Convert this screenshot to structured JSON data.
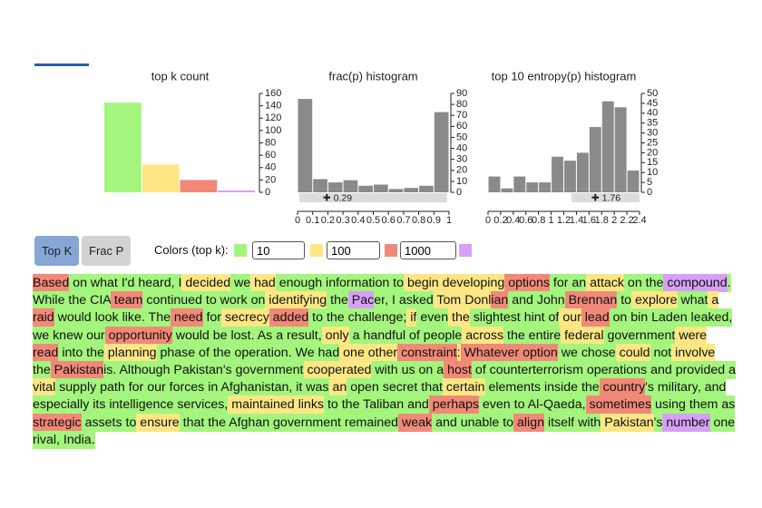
{
  "charts": [
    {
      "type": "bar",
      "title": "top k count",
      "values": [
        145,
        45,
        20,
        3
      ],
      "colors": [
        "#a3f57d",
        "#fde784",
        "#f28978",
        "#d7a0f7"
      ],
      "ylim": [
        0,
        160
      ],
      "yticks": [
        0,
        20,
        40,
        60,
        80,
        100,
        120,
        140,
        160
      ]
    },
    {
      "type": "histogram",
      "title": "frac(p) histogram",
      "bins": [
        0,
        0.1,
        0.2,
        0.3,
        0.4,
        0.5,
        0.6,
        0.7,
        0.8,
        0.9,
        1
      ],
      "values": [
        85,
        12,
        9,
        11,
        6,
        7,
        3,
        4,
        6,
        73
      ],
      "color": "#8a8a8a",
      "xlim": [
        0,
        1
      ],
      "xticks": [
        0,
        0.1,
        0.2,
        0.3,
        0.4,
        0.5,
        0.6,
        0.7,
        0.8,
        0.9,
        1
      ],
      "ylim": [
        0,
        90
      ],
      "yticks": [
        0,
        10,
        20,
        30,
        40,
        50,
        60,
        70,
        80,
        90
      ],
      "annotation": "✚ 0.29"
    },
    {
      "type": "histogram",
      "title": "top 10 entropy(p) histogram",
      "bins": [
        0,
        0.2,
        0.4,
        0.6,
        0.8,
        1,
        1.2,
        1.4,
        1.6,
        1.8,
        2,
        2.2,
        2.4
      ],
      "values": [
        8,
        2,
        8,
        5,
        5,
        18,
        16,
        20,
        33,
        46,
        43,
        11
      ],
      "color": "#8a8a8a",
      "xlim": [
        0,
        2.4
      ],
      "xticks": [
        0,
        0.2,
        0.4,
        0.6,
        0.8,
        1,
        1.2,
        1.4,
        1.6,
        1.8,
        2,
        2.2,
        2.4
      ],
      "ylim": [
        0,
        50
      ],
      "yticks": [
        0,
        5,
        10,
        15,
        20,
        25,
        30,
        35,
        40,
        45,
        50
      ],
      "annotation": "✚ 1.76"
    }
  ],
  "buttons": [
    "Top K",
    "Frac P"
  ],
  "colors_label": "Colors (top k):",
  "thresholds": [
    10,
    100,
    1000
  ],
  "palette": {
    "g": "#a3f57d",
    "y": "#fde784",
    "r": "#f28978",
    "p": "#d7a0f7"
  },
  "tokens": [
    [
      "Based",
      "r"
    ],
    [
      " on",
      "g"
    ],
    [
      " what",
      "g"
    ],
    [
      " I",
      "g"
    ],
    [
      "'d",
      "g"
    ],
    [
      " heard",
      "g"
    ],
    [
      ",",
      "g"
    ],
    [
      " I",
      "g"
    ],
    [
      " decided",
      "y"
    ],
    [
      " we",
      "g"
    ],
    [
      " had",
      "y"
    ],
    [
      " enough",
      "g"
    ],
    [
      " information",
      "g"
    ],
    [
      " to",
      "g"
    ],
    [
      " begin",
      "y"
    ],
    [
      " developing",
      "y"
    ],
    [
      " options",
      "r"
    ],
    [
      " for",
      "g"
    ],
    [
      " an",
      "g"
    ],
    [
      " attack",
      "y"
    ],
    [
      " on",
      "g"
    ],
    [
      " the",
      "g"
    ],
    [
      " compound",
      "p"
    ],
    [
      ".",
      "g"
    ],
    [
      " While",
      "g"
    ],
    [
      " the",
      "g"
    ],
    [
      " CIA",
      "g"
    ],
    [
      " team",
      "r"
    ],
    [
      " continued",
      "g"
    ],
    [
      " to",
      "g"
    ],
    [
      " work",
      "g"
    ],
    [
      " on",
      "g"
    ],
    [
      " identifying",
      "y"
    ],
    [
      " the",
      "g"
    ],
    [
      " Pac",
      "p"
    ],
    [
      "er",
      "g"
    ],
    [
      ",",
      "g"
    ],
    [
      " I",
      "g"
    ],
    [
      " asked",
      "g"
    ],
    [
      " Tom",
      "y"
    ],
    [
      " Donl",
      "y"
    ],
    [
      "ian",
      "r"
    ],
    [
      " and",
      "g"
    ],
    [
      " John",
      "g"
    ],
    [
      " Brennan",
      "r"
    ],
    [
      " to",
      "g"
    ],
    [
      " explore",
      "y"
    ],
    [
      " what",
      "g"
    ],
    [
      " a",
      "y"
    ],
    [
      " raid",
      "r"
    ],
    [
      " would",
      "g"
    ],
    [
      " look",
      "g"
    ],
    [
      " like",
      "g"
    ],
    [
      ".",
      "g"
    ],
    [
      " The",
      "g"
    ],
    [
      " need",
      "r"
    ],
    [
      " for",
      "g"
    ],
    [
      " secrecy",
      "y"
    ],
    [
      " added",
      "r"
    ],
    [
      " to",
      "g"
    ],
    [
      " the",
      "g"
    ],
    [
      " challenge",
      "g"
    ],
    [
      ";",
      "g"
    ],
    [
      " if",
      "y"
    ],
    [
      " even",
      "g"
    ],
    [
      " the",
      "y"
    ],
    [
      " slightest",
      "g"
    ],
    [
      " hint",
      "g"
    ],
    [
      " of",
      "g"
    ],
    [
      " our",
      "y"
    ],
    [
      " lead",
      "r"
    ],
    [
      " on",
      "g"
    ],
    [
      " bin",
      "g"
    ],
    [
      " Laden",
      "g"
    ],
    [
      " leaked",
      "g"
    ],
    [
      ",",
      "g"
    ],
    [
      " we",
      "g"
    ],
    [
      " knew",
      "g"
    ],
    [
      " our",
      "g"
    ],
    [
      " opportunity",
      "r"
    ],
    [
      " would",
      "g"
    ],
    [
      " be",
      "g"
    ],
    [
      " lost",
      "g"
    ],
    [
      ".",
      "g"
    ],
    [
      " As",
      "g"
    ],
    [
      " a",
      "g"
    ],
    [
      " result",
      "g"
    ],
    [
      ",",
      "g"
    ],
    [
      " only",
      "y"
    ],
    [
      " a",
      "g"
    ],
    [
      " handful",
      "g"
    ],
    [
      " of",
      "g"
    ],
    [
      " people",
      "g"
    ],
    [
      " across",
      "y"
    ],
    [
      " the",
      "g"
    ],
    [
      " entire",
      "g"
    ],
    [
      " federal",
      "y"
    ],
    [
      " government",
      "g"
    ],
    [
      " were",
      "y"
    ],
    [
      " read",
      "r"
    ],
    [
      " into",
      "g"
    ],
    [
      " the",
      "g"
    ],
    [
      " planning",
      "y"
    ],
    [
      " phase",
      "g"
    ],
    [
      " of",
      "g"
    ],
    [
      " the",
      "g"
    ],
    [
      " operation",
      "g"
    ],
    [
      ".",
      "g"
    ],
    [
      " We",
      "g"
    ],
    [
      " had",
      "g"
    ],
    [
      " one",
      "y"
    ],
    [
      " other",
      "y"
    ],
    [
      " constraint",
      "r"
    ],
    [
      ":",
      "y"
    ],
    [
      " Whatever",
      "r"
    ],
    [
      " option",
      "r"
    ],
    [
      " we",
      "g"
    ],
    [
      " chose",
      "g"
    ],
    [
      " could",
      "y"
    ],
    [
      " not",
      "g"
    ],
    [
      " involve",
      "y"
    ],
    [
      " the",
      "g"
    ],
    [
      " Pakistan",
      "r"
    ],
    [
      "is",
      "g"
    ],
    [
      ".",
      "g"
    ],
    [
      " Although",
      "g"
    ],
    [
      " Pakistan",
      "g"
    ],
    [
      "'s",
      "g"
    ],
    [
      " government",
      "g"
    ],
    [
      " cooperated",
      "y"
    ],
    [
      " with",
      "g"
    ],
    [
      " us",
      "g"
    ],
    [
      " on",
      "g"
    ],
    [
      " a",
      "g"
    ],
    [
      " host",
      "r"
    ],
    [
      " of",
      "g"
    ],
    [
      " counterterrorism",
      "g"
    ],
    [
      " operations",
      "g"
    ],
    [
      " and",
      "g"
    ],
    [
      " provided",
      "g"
    ],
    [
      " a",
      "g"
    ],
    [
      " vital",
      "y"
    ],
    [
      " supply",
      "g"
    ],
    [
      " path",
      "g"
    ],
    [
      " for",
      "g"
    ],
    [
      " our",
      "g"
    ],
    [
      " forces",
      "g"
    ],
    [
      " in",
      "g"
    ],
    [
      " Afghanistan",
      "g"
    ],
    [
      ",",
      "g"
    ],
    [
      " it",
      "g"
    ],
    [
      " was",
      "g"
    ],
    [
      " an",
      "y"
    ],
    [
      " open",
      "g"
    ],
    [
      " secret",
      "g"
    ],
    [
      " that",
      "g"
    ],
    [
      " certain",
      "y"
    ],
    [
      " elements",
      "g"
    ],
    [
      " inside",
      "g"
    ],
    [
      " the",
      "g"
    ],
    [
      " country",
      "r"
    ],
    [
      "'s",
      "g"
    ],
    [
      " military",
      "g"
    ],
    [
      ",",
      "g"
    ],
    [
      " and",
      "g"
    ],
    [
      " especially",
      "g"
    ],
    [
      " its",
      "g"
    ],
    [
      " intelligence",
      "g"
    ],
    [
      " services",
      "g"
    ],
    [
      ",",
      "g"
    ],
    [
      " maintained",
      "y"
    ],
    [
      " links",
      "y"
    ],
    [
      " to",
      "g"
    ],
    [
      " the",
      "g"
    ],
    [
      " Taliban",
      "g"
    ],
    [
      " and",
      "g"
    ],
    [
      " perhaps",
      "r"
    ],
    [
      " even",
      "g"
    ],
    [
      " to",
      "g"
    ],
    [
      " Al",
      "g"
    ],
    [
      "-",
      "g"
    ],
    [
      "Qaeda",
      "g"
    ],
    [
      ",",
      "g"
    ],
    [
      " sometimes",
      "r"
    ],
    [
      " using",
      "g"
    ],
    [
      " them",
      "g"
    ],
    [
      " as",
      "g"
    ],
    [
      " strategic",
      "r"
    ],
    [
      " assets",
      "g"
    ],
    [
      " to",
      "g"
    ],
    [
      " ensure",
      "y"
    ],
    [
      " that",
      "g"
    ],
    [
      " the",
      "g"
    ],
    [
      " Afghan",
      "g"
    ],
    [
      " government",
      "g"
    ],
    [
      " remained",
      "g"
    ],
    [
      " weak",
      "r"
    ],
    [
      " and",
      "g"
    ],
    [
      " unable",
      "g"
    ],
    [
      " to",
      "g"
    ],
    [
      " align",
      "r"
    ],
    [
      " itself",
      "g"
    ],
    [
      " with",
      "g"
    ],
    [
      " Pakistan",
      "y"
    ],
    [
      "'s",
      "g"
    ],
    [
      " number",
      "p"
    ],
    [
      " one",
      "g"
    ],
    [
      " rival",
      "g"
    ],
    [
      ",",
      "g"
    ],
    [
      " India",
      "g"
    ],
    [
      ".",
      "g"
    ]
  ]
}
